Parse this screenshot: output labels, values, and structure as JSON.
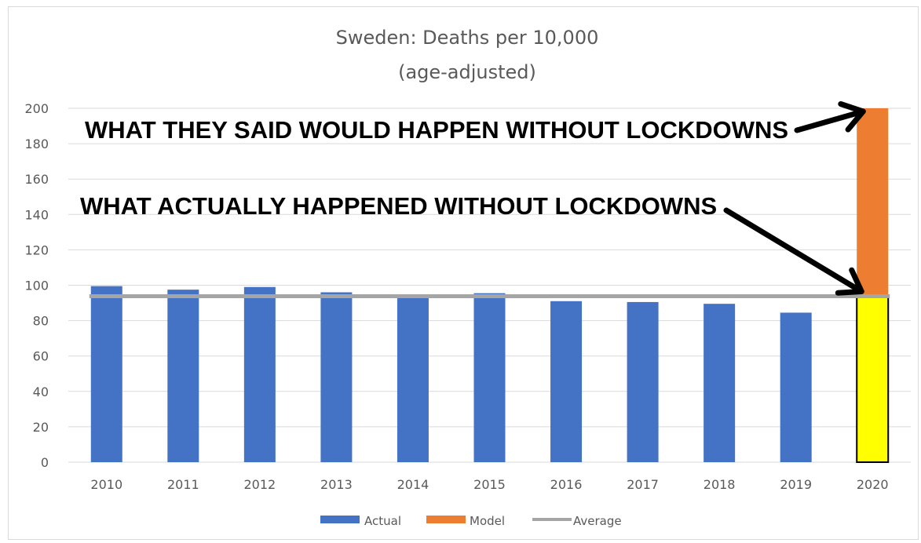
{
  "chart_data": {
    "type": "bar",
    "title": "Sweden: Deaths per 10,000",
    "subtitle": "(age-adjusted)",
    "categories": [
      "2010",
      "2011",
      "2012",
      "2013",
      "2014",
      "2015",
      "2016",
      "2017",
      "2018",
      "2019",
      "2020"
    ],
    "series": [
      {
        "name": "Actual",
        "values": [
          99.5,
          97.5,
          99,
          96,
          93.5,
          95.5,
          91,
          90.5,
          89.5,
          84.5,
          93.5
        ],
        "color": "#4472c4"
      },
      {
        "name": "Model",
        "values": [
          null,
          null,
          null,
          null,
          null,
          null,
          null,
          null,
          null,
          null,
          200
        ],
        "color": "#ed7d31"
      },
      {
        "name": "Average",
        "type": "line",
        "values": [
          93.8,
          93.8,
          93.8,
          93.8,
          93.8,
          93.8,
          93.8,
          93.8,
          93.8,
          93.8,
          93.8
        ],
        "color": "#a5a5a5"
      }
    ],
    "highlight": {
      "category": "2020",
      "fill": "#ffff00",
      "stroke": "#000000"
    },
    "yticks": [
      0,
      20,
      40,
      60,
      80,
      100,
      120,
      140,
      160,
      180,
      200
    ],
    "ylim": [
      0,
      200
    ],
    "grid": true,
    "legend_position": "bottom",
    "annotations": [
      {
        "text": "WHAT THEY SAID WOULD HAPPEN WITHOUT LOCKDOWNS",
        "points_to": {
          "category": "2020",
          "value": 200
        }
      },
      {
        "text": "WHAT ACTUALLY HAPPENED WITHOUT LOCKDOWNS",
        "points_to": {
          "category": "2020",
          "value": 93.8
        }
      }
    ]
  }
}
